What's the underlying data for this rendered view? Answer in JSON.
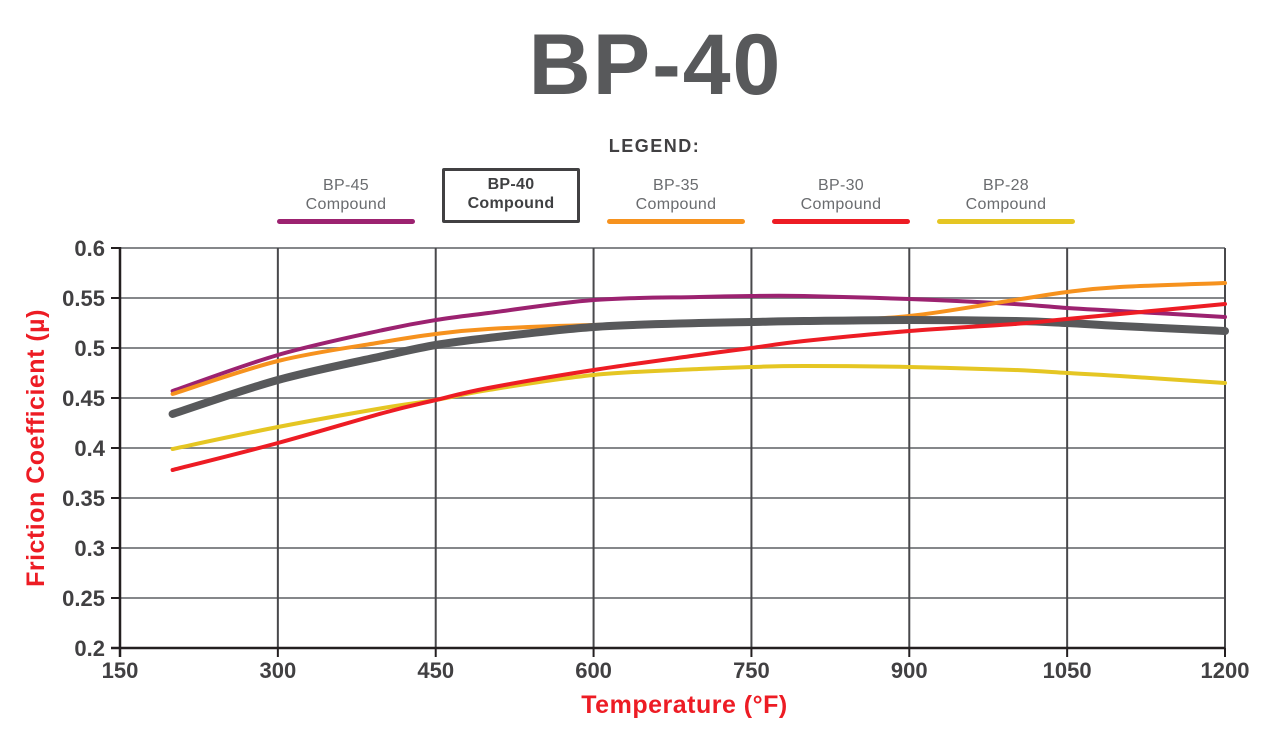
{
  "page": {
    "title": "BP-40"
  },
  "legend": {
    "heading": "LEGEND:",
    "items": [
      {
        "line1": "BP-45",
        "line2": "Compound",
        "color": "#9C2270",
        "active": false
      },
      {
        "line1": "BP-40",
        "line2": "Compound",
        "color": "#58595B",
        "active": true
      },
      {
        "line1": "BP-35",
        "line2": "Compound",
        "color": "#F6921E",
        "active": false
      },
      {
        "line1": "BP-30",
        "line2": "Compound",
        "color": "#ED1C24",
        "active": false
      },
      {
        "line1": "BP-28",
        "line2": "Compound",
        "color": "#E5C623",
        "active": false
      }
    ]
  },
  "chart_data": {
    "type": "line",
    "title": "BP-40",
    "xlabel": "Temperature (°F)",
    "ylabel": "Friction Coefficient (µ)",
    "xlim": [
      150,
      1200
    ],
    "ylim": [
      0.2,
      0.6
    ],
    "x_ticks": [
      150,
      300,
      450,
      600,
      750,
      900,
      1050,
      1200
    ],
    "y_ticks": [
      0.2,
      0.25,
      0.3,
      0.35,
      0.4,
      0.45,
      0.5,
      0.55,
      0.6
    ],
    "grid": true,
    "legend_position": "top",
    "x": [
      200,
      300,
      400,
      450,
      500,
      600,
      700,
      750,
      800,
      900,
      1000,
      1050,
      1100,
      1200
    ],
    "series": [
      {
        "id": "BP-45",
        "name": "BP-45 Compound",
        "color": "#9C2270",
        "stroke_width": 4,
        "values": [
          0.457,
          0.493,
          0.518,
          0.528,
          0.535,
          0.548,
          0.551,
          0.552,
          0.552,
          0.549,
          0.544,
          0.54,
          0.537,
          0.531
        ]
      },
      {
        "id": "BP-40",
        "name": "BP-40 Compound",
        "color": "#58595B",
        "stroke_width": 8,
        "values": [
          0.434,
          0.468,
          0.492,
          0.503,
          0.51,
          0.521,
          0.525,
          0.526,
          0.527,
          0.528,
          0.527,
          0.525,
          0.522,
          0.517
        ]
      },
      {
        "id": "BP-35",
        "name": "BP-35 Compound",
        "color": "#F6921E",
        "stroke_width": 4,
        "values": [
          0.454,
          0.487,
          0.506,
          0.514,
          0.519,
          0.523,
          0.524,
          0.525,
          0.526,
          0.532,
          0.548,
          0.556,
          0.561,
          0.565
        ]
      },
      {
        "id": "BP-30",
        "name": "BP-30 Compound",
        "color": "#ED1C24",
        "stroke_width": 4,
        "values": [
          0.378,
          0.405,
          0.435,
          0.448,
          0.46,
          0.478,
          0.493,
          0.5,
          0.507,
          0.517,
          0.524,
          0.529,
          0.534,
          0.544
        ]
      },
      {
        "id": "BP-28",
        "name": "BP-28 Compound",
        "color": "#E5C623",
        "stroke_width": 4,
        "values": [
          0.399,
          0.421,
          0.44,
          0.448,
          0.458,
          0.473,
          0.479,
          0.481,
          0.482,
          0.481,
          0.478,
          0.475,
          0.472,
          0.465
        ]
      }
    ],
    "drawing_order": [
      "BP-45",
      "BP-35",
      "BP-40",
      "BP-28",
      "BP-30"
    ],
    "colors": {
      "grid_h": "#85878A",
      "grid_v": "#48484B",
      "axis": "#231F20",
      "tick_label": "#414042",
      "axis_label": "#ED1C24",
      "title": "#58595B"
    }
  }
}
